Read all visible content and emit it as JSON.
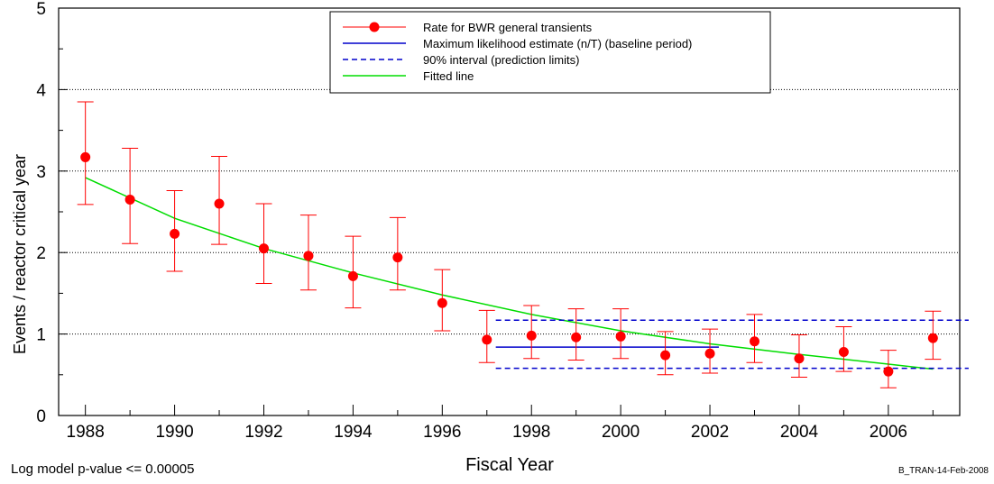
{
  "chart_data": {
    "type": "scatter",
    "xlabel": "Fiscal Year",
    "ylabel": "Events / reactor critical year",
    "xlim": [
      1987.4,
      2007.6
    ],
    "ylim": [
      0,
      5
    ],
    "xticks_major": [
      "1988",
      "1990",
      "1992",
      "1994",
      "1996",
      "1998",
      "2000",
      "2002",
      "2004",
      "2006"
    ],
    "yticks": [
      "0",
      "1",
      "2",
      "3",
      "4",
      "5"
    ],
    "grid": "horizontal dotted at 1, 2, 3, 4",
    "legend_position": "top-center",
    "colors": {
      "rate": "#ff0000",
      "mle": "#0000cc",
      "interval": "#0000cc",
      "fit": "#00dd00"
    },
    "series": [
      {
        "name": "Rate for BWR general transients",
        "x": [
          1988,
          1989,
          1990,
          1991,
          1992,
          1993,
          1994,
          1995,
          1996,
          1997,
          1998,
          1999,
          2000,
          2001,
          2002,
          2003,
          2004,
          2005,
          2006,
          2007
        ],
        "y": [
          3.17,
          2.65,
          2.23,
          2.6,
          2.05,
          1.96,
          1.71,
          1.94,
          1.38,
          0.93,
          0.98,
          0.96,
          0.97,
          0.74,
          0.76,
          0.91,
          0.7,
          0.78,
          0.54,
          0.95
        ],
        "y_upper": [
          3.85,
          3.28,
          2.76,
          3.18,
          2.6,
          2.46,
          2.2,
          2.43,
          1.79,
          1.29,
          1.35,
          1.31,
          1.31,
          1.03,
          1.06,
          1.24,
          0.99,
          1.09,
          0.8,
          1.28
        ],
        "y_lower": [
          2.59,
          2.11,
          1.77,
          2.1,
          1.62,
          1.54,
          1.32,
          1.54,
          1.04,
          0.65,
          0.7,
          0.68,
          0.7,
          0.5,
          0.52,
          0.65,
          0.47,
          0.54,
          0.34,
          0.69
        ]
      },
      {
        "name": "Maximum likelihood estimate (n/T) (baseline period)",
        "x": [
          1997.2,
          2002.2
        ],
        "y": [
          0.84,
          0.84
        ]
      },
      {
        "name": "90% interval (prediction limits)",
        "x": [
          1997.2,
          2007.8
        ],
        "upper": 1.17,
        "lower": 0.58
      },
      {
        "name": "Fitted line",
        "x": [
          1988,
          1990,
          1992,
          1994,
          1996,
          1998,
          2000,
          2002,
          2004,
          2006,
          2007
        ],
        "y": [
          2.92,
          2.42,
          2.05,
          1.75,
          1.48,
          1.24,
          1.04,
          0.88,
          0.75,
          0.63,
          0.57
        ]
      }
    ]
  },
  "footer": {
    "pvalue": "Log model p-value <= 0.00005",
    "stamp": "B_TRAN-14-Feb-2008"
  }
}
